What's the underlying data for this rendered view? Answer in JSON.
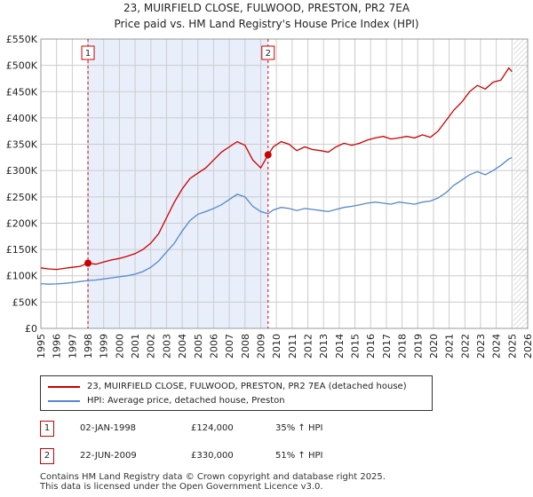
{
  "header": {
    "title_line1": "23, MUIRFIELD CLOSE, FULWOOD, PRESTON, PR2 7EA",
    "title_line2": "Price paid vs. HM Land Registry's House Price Index (HPI)"
  },
  "chart_data": {
    "type": "line",
    "title": "23, MUIRFIELD CLOSE, FULWOOD, PRESTON, PR2 7EA — Price paid vs. HM Land Registry's House Price Index (HPI)",
    "xlabel": "",
    "ylabel": "",
    "xlim": [
      1995,
      2026
    ],
    "ylim": [
      0,
      550000
    ],
    "y_ticks": [
      0,
      50000,
      100000,
      150000,
      200000,
      250000,
      300000,
      350000,
      400000,
      450000,
      500000,
      550000
    ],
    "y_tick_labels": [
      "£0",
      "£50K",
      "£100K",
      "£150K",
      "£200K",
      "£250K",
      "£300K",
      "£350K",
      "£400K",
      "£450K",
      "£500K",
      "£550K"
    ],
    "x_ticks": [
      1995,
      1996,
      1997,
      1998,
      1999,
      2000,
      2001,
      2002,
      2003,
      2004,
      2005,
      2006,
      2007,
      2008,
      2009,
      2010,
      2011,
      2012,
      2013,
      2014,
      2015,
      2016,
      2017,
      2018,
      2019,
      2020,
      2021,
      2022,
      2023,
      2024,
      2025,
      2026
    ],
    "x_tick_labels": [
      "1995",
      "1996",
      "1997",
      "1998",
      "1999",
      "2000",
      "2001",
      "2002",
      "2003",
      "2004",
      "2005",
      "2006",
      "2007",
      "2008",
      "2009",
      "2010",
      "2011",
      "2012",
      "2013",
      "2014",
      "2015",
      "2016",
      "2017",
      "2018",
      "2019",
      "2020",
      "2021",
      "2022",
      "2023",
      "2024",
      "2025",
      "2026"
    ],
    "shaded_region": [
      1998.0,
      2009.47
    ],
    "future_hatch_from": 2025.1,
    "series": [
      {
        "name": "23, MUIRFIELD CLOSE, FULWOOD, PRESTON, PR2 7EA (detached house)",
        "color": "#cc0000",
        "x": [
          1995.0,
          1995.5,
          1996.0,
          1996.5,
          1997.0,
          1997.5,
          1998.0,
          1998.5,
          1999.0,
          1999.5,
          2000.0,
          2000.5,
          2001.0,
          2001.5,
          2002.0,
          2002.5,
          2003.0,
          2003.5,
          2004.0,
          2004.5,
          2005.0,
          2005.5,
          2006.0,
          2006.5,
          2007.0,
          2007.5,
          2008.0,
          2008.5,
          2009.0,
          2009.47,
          2009.8,
          2010.3,
          2010.8,
          2011.3,
          2011.8,
          2012.3,
          2012.8,
          2013.3,
          2013.8,
          2014.3,
          2014.8,
          2015.3,
          2015.8,
          2016.3,
          2016.8,
          2017.3,
          2017.8,
          2018.3,
          2018.8,
          2019.3,
          2019.8,
          2020.3,
          2020.8,
          2021.3,
          2021.8,
          2022.3,
          2022.8,
          2023.3,
          2023.8,
          2024.3,
          2024.8,
          2025.0
        ],
        "values": [
          115000,
          113000,
          112000,
          114000,
          116000,
          118000,
          124000,
          122000,
          126000,
          130000,
          133000,
          137000,
          142000,
          150000,
          162000,
          180000,
          210000,
          240000,
          265000,
          285000,
          295000,
          305000,
          320000,
          335000,
          345000,
          355000,
          348000,
          320000,
          305000,
          330000,
          345000,
          355000,
          350000,
          338000,
          345000,
          340000,
          338000,
          335000,
          345000,
          352000,
          348000,
          352000,
          358000,
          362000,
          365000,
          360000,
          362000,
          365000,
          362000,
          368000,
          363000,
          375000,
          395000,
          415000,
          430000,
          450000,
          462000,
          455000,
          468000,
          472000,
          495000,
          488000
        ]
      },
      {
        "name": "HPI: Average price, detached house, Preston",
        "color": "#5588cc",
        "x": [
          1995.0,
          1995.5,
          1996.0,
          1996.5,
          1997.0,
          1997.5,
          1998.0,
          1998.5,
          1999.0,
          1999.5,
          2000.0,
          2000.5,
          2001.0,
          2001.5,
          2002.0,
          2002.5,
          2003.0,
          2003.5,
          2004.0,
          2004.5,
          2005.0,
          2005.5,
          2006.0,
          2006.5,
          2007.0,
          2007.5,
          2008.0,
          2008.5,
          2009.0,
          2009.47,
          2009.8,
          2010.3,
          2010.8,
          2011.3,
          2011.8,
          2012.3,
          2012.8,
          2013.3,
          2013.8,
          2014.3,
          2014.8,
          2015.3,
          2015.8,
          2016.3,
          2016.8,
          2017.3,
          2017.8,
          2018.3,
          2018.8,
          2019.3,
          2019.8,
          2020.3,
          2020.8,
          2021.3,
          2021.8,
          2022.3,
          2022.8,
          2023.3,
          2023.8,
          2024.3,
          2024.8,
          2025.0
        ],
        "values": [
          85000,
          84000,
          84500,
          85500,
          87000,
          89000,
          91000,
          92000,
          94000,
          96000,
          98000,
          100000,
          103000,
          108000,
          116000,
          128000,
          145000,
          162000,
          185000,
          205000,
          217000,
          222000,
          228000,
          235000,
          245000,
          255000,
          250000,
          232000,
          222000,
          218000,
          225000,
          230000,
          228000,
          224000,
          228000,
          226000,
          224000,
          222000,
          226000,
          230000,
          232000,
          235000,
          238000,
          240000,
          238000,
          236000,
          240000,
          238000,
          236000,
          240000,
          242000,
          248000,
          258000,
          272000,
          282000,
          292000,
          298000,
          292000,
          300000,
          310000,
          322000,
          325000
        ]
      }
    ],
    "transactions": [
      {
        "id": "1",
        "x": 1998.0,
        "value": 124000
      },
      {
        "id": "2",
        "x": 2009.47,
        "value": 330000
      }
    ]
  },
  "legend": {
    "property_label": "23, MUIRFIELD CLOSE, FULWOOD, PRESTON, PR2 7EA (detached house)",
    "hpi_label": "HPI: Average price, detached house, Preston"
  },
  "transactions_table": [
    {
      "id": "1",
      "date": "02-JAN-1998",
      "price": "£124,000",
      "hpi_change": "35% ↑ HPI"
    },
    {
      "id": "2",
      "date": "22-JUN-2009",
      "price": "£330,000",
      "hpi_change": "51% ↑ HPI"
    }
  ],
  "footer": {
    "line1": "Contains HM Land Registry data © Crown copyright and database right 2025.",
    "line2": "This data is licensed under the Open Government Licence v3.0."
  },
  "colors": {
    "property": "#cc0000",
    "hpi": "#5588cc",
    "shade": "#e8eefa",
    "grid": "#cccccc",
    "marker_line": "#cc0000"
  }
}
